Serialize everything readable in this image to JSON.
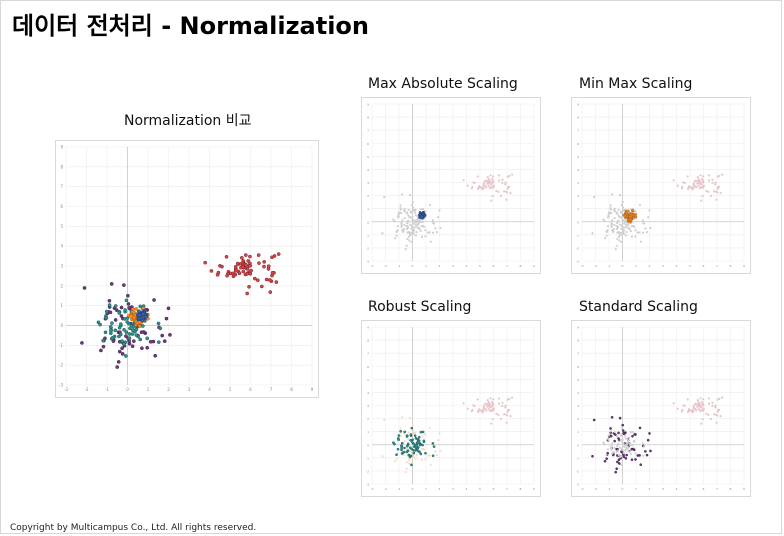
{
  "slide": {
    "title": "데이터 전처리 - Normalization",
    "copyright": "Copyright by Multicampus Co., Ltd. All rights reserved."
  },
  "colors": {
    "red": "#d14a4a",
    "dark_red": "#7a1f2b",
    "blue": "#3b62a4",
    "orange": "#f28e2b",
    "teal": "#2f8f8a",
    "purple": "#6a3d7a",
    "faded_pink": "#e8c5c8",
    "faded_gray": "#cfcfcf",
    "faded_peach": "#f7dcc3",
    "grid": "#ececec",
    "axis": "#c8c8c8"
  },
  "plots": [
    {
      "id": "main",
      "caption": "Normalization 비교",
      "xlim": [
        -3,
        9
      ],
      "ylim": [
        -3,
        9
      ],
      "xticks": [
        "-3",
        "-2",
        "-1",
        "0",
        "1",
        "2",
        "3",
        "4",
        "5",
        "6",
        "7",
        "8",
        "9"
      ],
      "yticks": [
        "-3",
        "-2",
        "-1",
        "0",
        "1",
        "2",
        "3",
        "4",
        "5",
        "6",
        "7",
        "8",
        "9"
      ],
      "highlight": "all"
    },
    {
      "id": "max-abs",
      "caption": "Max Absolute Scaling",
      "xlim": [
        -3,
        9
      ],
      "ylim": [
        -3,
        9
      ],
      "xticks": [
        "-3",
        "-2",
        "-1",
        "0",
        "1",
        "2",
        "3",
        "4",
        "5",
        "6",
        "7",
        "8",
        "9"
      ],
      "yticks": [
        "-3",
        "-2",
        "-1",
        "0",
        "1",
        "2",
        "3",
        "4",
        "5",
        "6",
        "7",
        "8",
        "9"
      ],
      "highlight": "max_abs"
    },
    {
      "id": "min-max",
      "caption": "Min Max Scaling",
      "xlim": [
        -3,
        9
      ],
      "ylim": [
        -3,
        9
      ],
      "xticks": [
        "-3",
        "-2",
        "-1",
        "0",
        "1",
        "2",
        "3",
        "4",
        "5",
        "6",
        "7",
        "8",
        "9"
      ],
      "yticks": [
        "-3",
        "-2",
        "-1",
        "0",
        "1",
        "2",
        "3",
        "4",
        "5",
        "6",
        "7",
        "8",
        "9"
      ],
      "highlight": "min_max"
    },
    {
      "id": "robust",
      "caption": "Robust Scaling",
      "xlim": [
        -3,
        9
      ],
      "ylim": [
        -3,
        9
      ],
      "xticks": [
        "-3",
        "-2",
        "-1",
        "0",
        "1",
        "2",
        "3",
        "4",
        "5",
        "6",
        "7",
        "8",
        "9"
      ],
      "yticks": [
        "-3",
        "-2",
        "-1",
        "0",
        "1",
        "2",
        "3",
        "4",
        "5",
        "6",
        "7",
        "8",
        "9"
      ],
      "highlight": "robust"
    },
    {
      "id": "standard",
      "caption": "Standard Scaling",
      "xlim": [
        -3,
        9
      ],
      "ylim": [
        -3,
        9
      ],
      "xticks": [
        "-3",
        "-2",
        "-1",
        "0",
        "1",
        "2",
        "3",
        "4",
        "5",
        "6",
        "7",
        "8",
        "9"
      ],
      "yticks": [
        "-3",
        "-2",
        "-1",
        "0",
        "1",
        "2",
        "3",
        "4",
        "5",
        "6",
        "7",
        "8",
        "9"
      ],
      "highlight": "standard"
    }
  ],
  "chart_data": {
    "type": "scatter",
    "series": [
      {
        "key": "original",
        "mean": [
          5.8,
          2.9
        ],
        "std": [
          0.8,
          0.45
        ],
        "n": 70
      },
      {
        "key": "max_abs",
        "mean": [
          0.75,
          0.5
        ],
        "std": [
          0.1,
          0.1
        ],
        "n": 70
      },
      {
        "key": "min_max",
        "mean": [
          0.55,
          0.45
        ],
        "std": [
          0.2,
          0.2
        ],
        "n": 70
      },
      {
        "key": "robust",
        "mean": [
          0.0,
          0.0
        ],
        "std": [
          0.65,
          0.6
        ],
        "n": 70
      },
      {
        "key": "standard",
        "mean": [
          0.0,
          0.0
        ],
        "std": [
          1.0,
          1.0
        ],
        "n": 70
      }
    ]
  }
}
